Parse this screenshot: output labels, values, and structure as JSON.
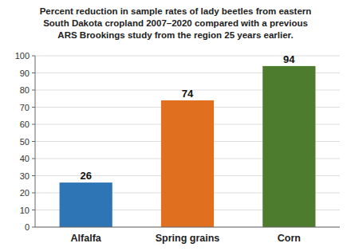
{
  "chart_data": {
    "type": "bar",
    "title": "Percent reduction in sample rates of lady beetles from eastern\nSouth Dakota cropland 2007–2020 compared with a previous\nARS Brookings study from the region 25 years earlier.",
    "categories": [
      "Alfalfa",
      "Spring grains",
      "Corn"
    ],
    "values": [
      26,
      74,
      94
    ],
    "colors": [
      "#2e75b6",
      "#e07020",
      "#4e7c2e"
    ],
    "ylim": [
      0,
      100
    ],
    "yticks": [
      0,
      10,
      20,
      30,
      40,
      50,
      60,
      70,
      80,
      90,
      100
    ],
    "grid": true,
    "data_labels": true
  }
}
